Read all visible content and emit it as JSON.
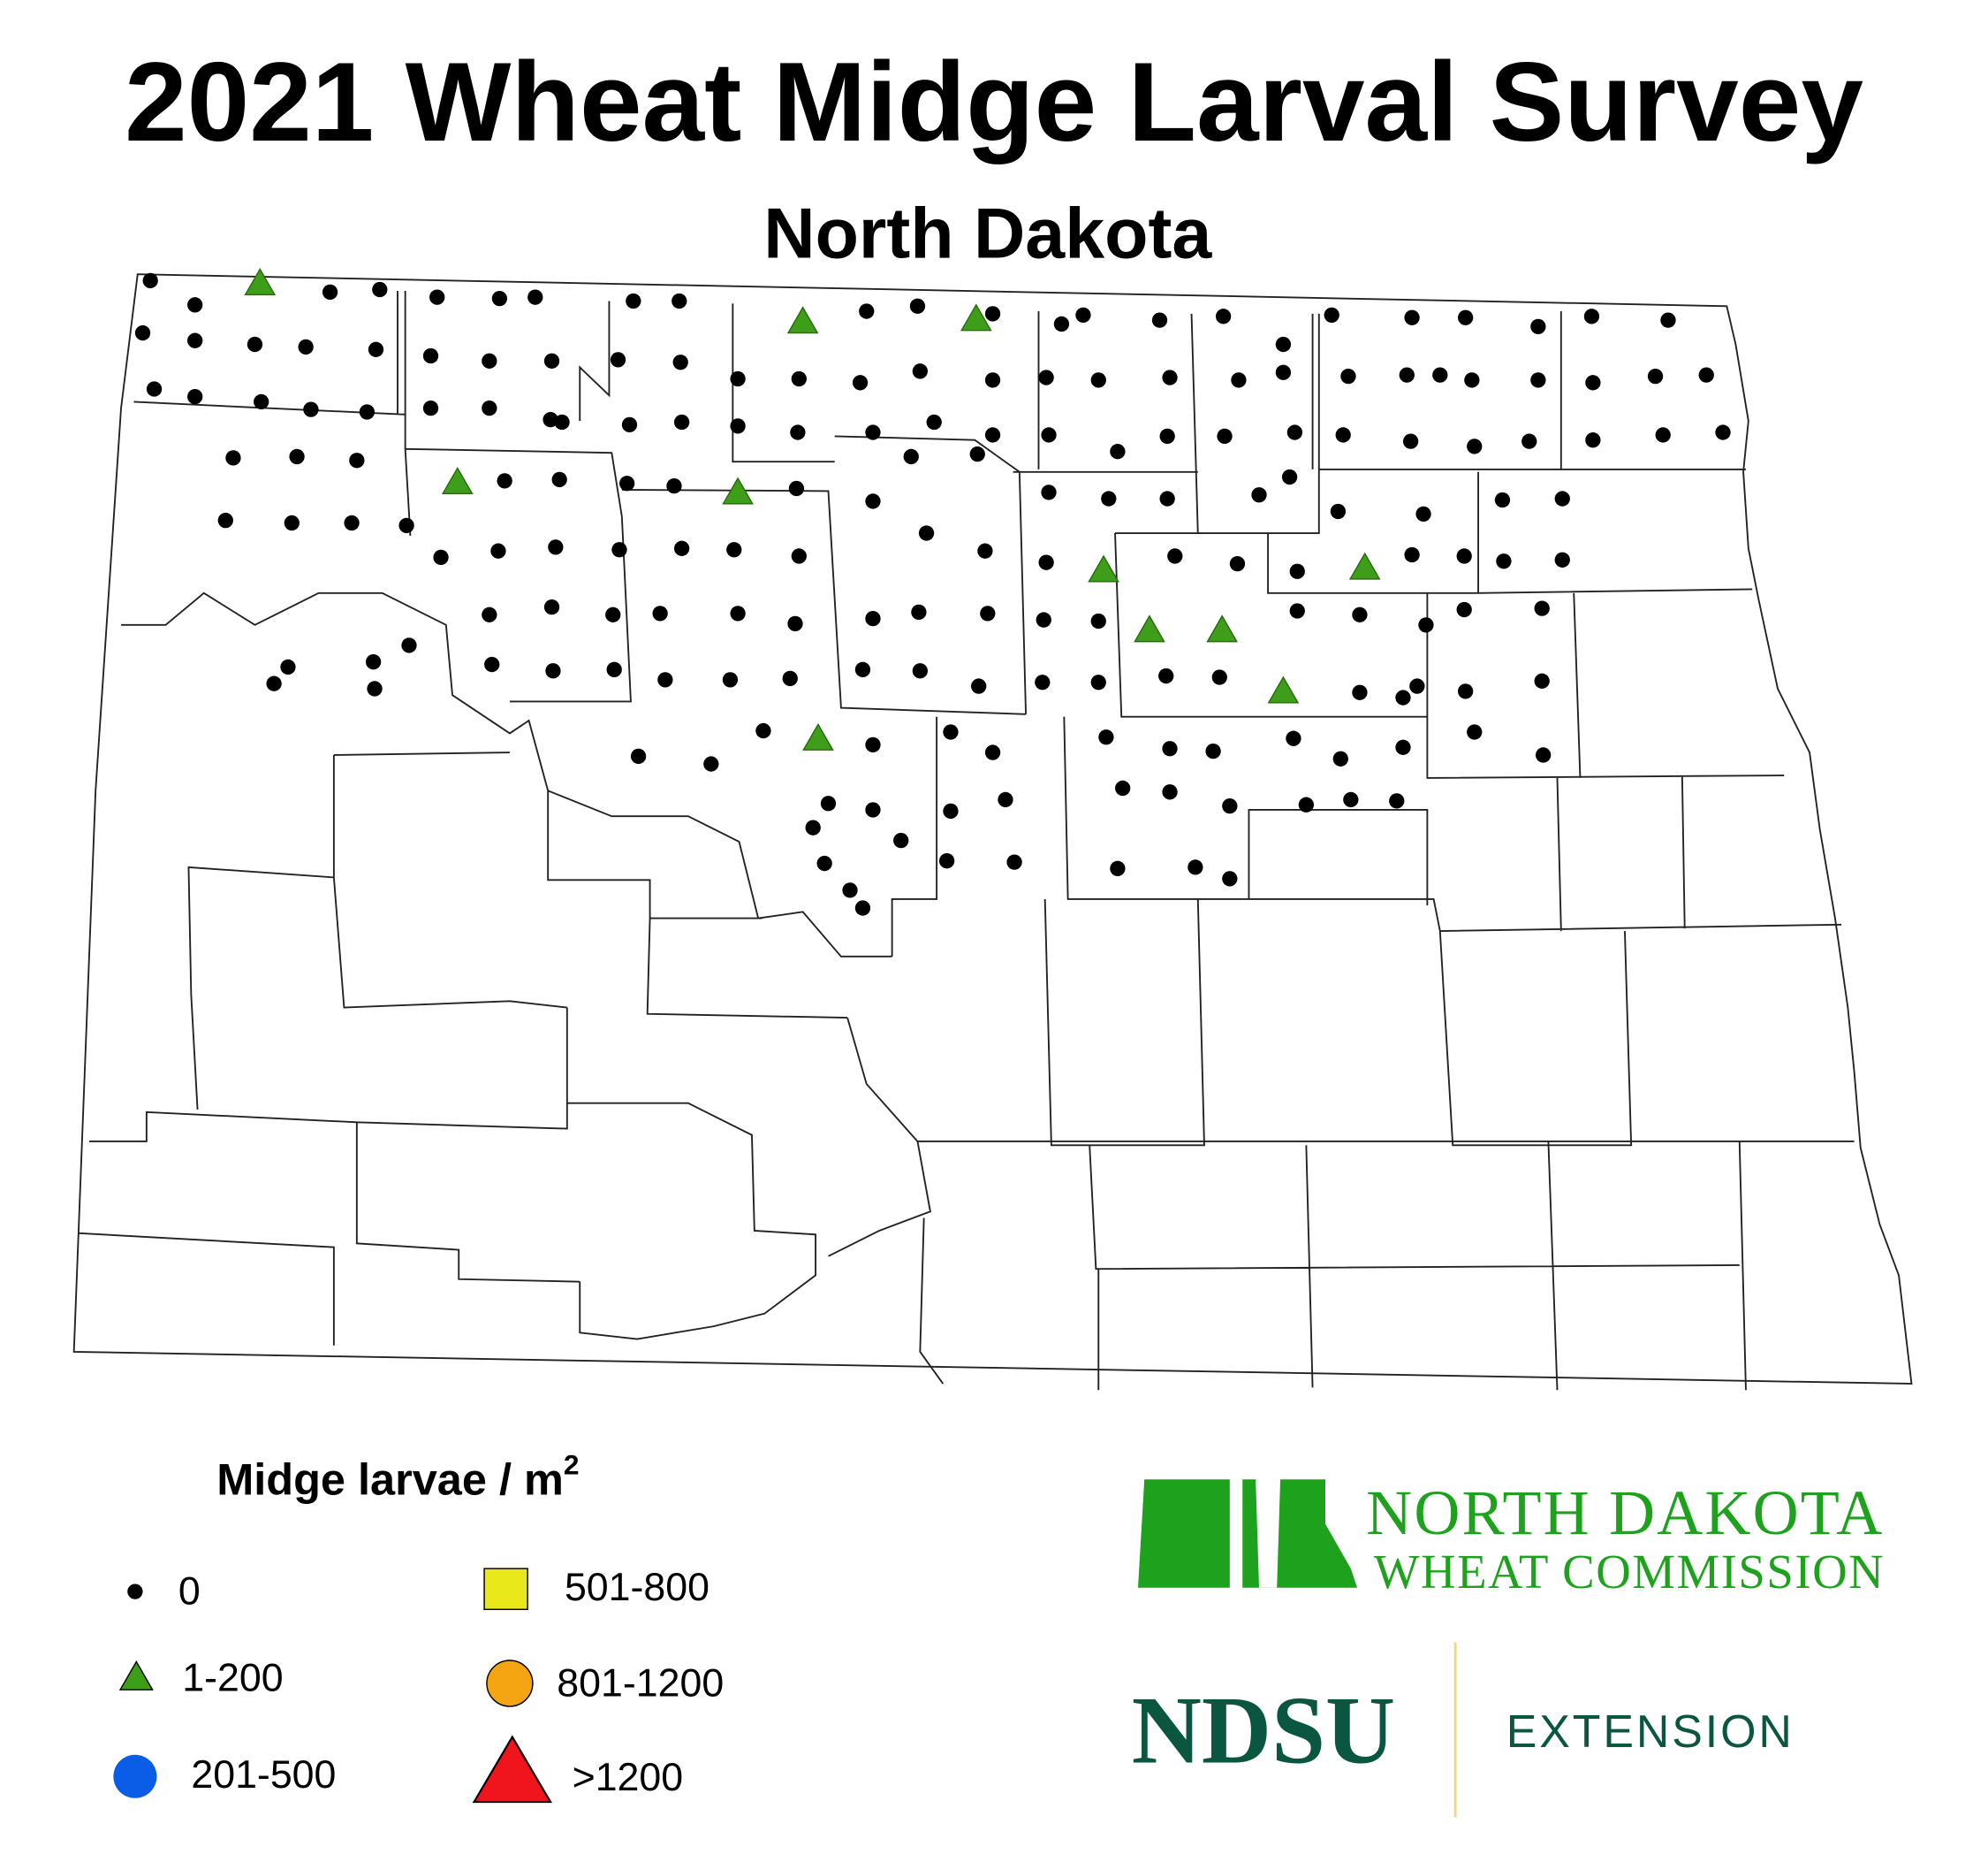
{
  "header": {
    "title": "2021 Wheat Midge Larval Survey",
    "subtitle": "North Dakota"
  },
  "legend": {
    "title": "Midge larvae / m",
    "title_superscript": "2",
    "items": [
      {
        "label": "0",
        "color": "#000000"
      },
      {
        "label": "1-200",
        "color": "#3e9e1a"
      },
      {
        "label": "201-500",
        "color": "#0b5ce6"
      },
      {
        "label": "501-800",
        "color": "#e8e81a"
      },
      {
        "label": "801-1200",
        "color": "#f5a412"
      },
      {
        "label": ">1200",
        "color": "#f0141c"
      }
    ]
  },
  "logos": {
    "wheat_commission": [
      "NORTH DAKOTA",
      "WHEAT COMMISSION"
    ],
    "ndsu": "NDSU",
    "extension": "EXTENSION"
  }
}
